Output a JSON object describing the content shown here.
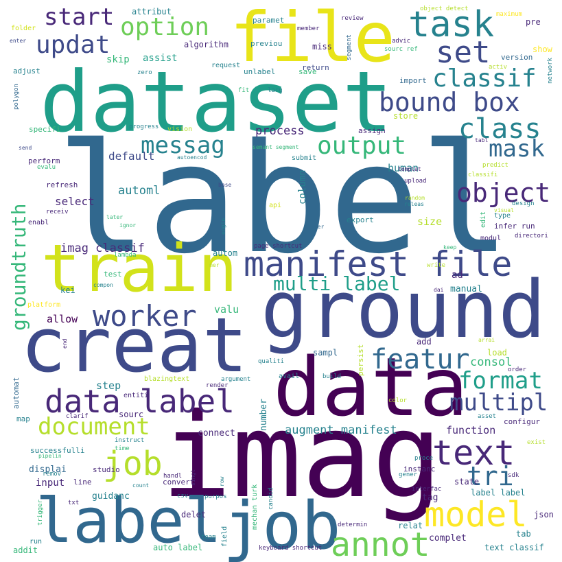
{
  "palette": {
    "background": "#ffffff",
    "dark_purple": "#440154",
    "indigo": "#482878",
    "blue_purple": "#3e4a89",
    "steel_blue": "#31688e",
    "teal_blue": "#26828e",
    "teal": "#1f9e89",
    "green": "#35b779",
    "light_green": "#6ece58",
    "lime": "#b5de2b",
    "yellow": "#fde725"
  },
  "words": [
    {
      "text": "label"
    },
    {
      "text": "imag"
    },
    {
      "text": "dataset"
    },
    {
      "text": "ground"
    },
    {
      "text": "creat"
    },
    {
      "text": "data"
    },
    {
      "text": "train"
    },
    {
      "text": "file"
    },
    {
      "text": "job"
    },
    {
      "text": "label"
    },
    {
      "text": "manifest file"
    },
    {
      "text": "task"
    },
    {
      "text": "set"
    },
    {
      "text": "text"
    },
    {
      "text": "model"
    },
    {
      "text": "annot"
    },
    {
      "text": "data label"
    },
    {
      "text": "job"
    },
    {
      "text": "bound box"
    },
    {
      "text": "class"
    },
    {
      "text": "object"
    },
    {
      "text": "worker"
    },
    {
      "text": "featur"
    },
    {
      "text": "classif"
    },
    {
      "text": "option"
    },
    {
      "text": "output"
    },
    {
      "text": "updat"
    },
    {
      "text": "start"
    },
    {
      "text": "messag"
    },
    {
      "text": "mask"
    },
    {
      "text": "format"
    },
    {
      "text": "multipl"
    },
    {
      "text": "document"
    },
    {
      "text": "tri"
    },
    {
      "text": "multi label"
    },
    {
      "text": "groundtruth"
    },
    {
      "text": "automl"
    },
    {
      "text": "augment manifest"
    },
    {
      "text": "consol"
    },
    {
      "text": "imag classif"
    },
    {
      "text": "process"
    },
    {
      "text": "default"
    },
    {
      "text": "select"
    },
    {
      "text": "human"
    },
    {
      "text": "size"
    },
    {
      "text": "function"
    },
    {
      "text": "allow"
    },
    {
      "text": "valu"
    },
    {
      "text": "step"
    },
    {
      "text": "column"
    },
    {
      "text": "assist"
    },
    {
      "text": "skip"
    },
    {
      "text": "algorithm"
    },
    {
      "text": "attribut"
    },
    {
      "text": "paramet"
    },
    {
      "text": "miss"
    },
    {
      "text": "previou"
    },
    {
      "text": "unlabel"
    },
    {
      "text": "save"
    },
    {
      "text": "return"
    },
    {
      "text": "request"
    },
    {
      "text": "member"
    },
    {
      "text": "review"
    },
    {
      "text": "segment"
    },
    {
      "text": "advic"
    },
    {
      "text": "object detect"
    },
    {
      "text": "maximum"
    },
    {
      "text": "pre"
    },
    {
      "text": "sourc ref"
    },
    {
      "text": "show"
    },
    {
      "text": "version"
    },
    {
      "text": "activ"
    },
    {
      "text": "network"
    },
    {
      "text": "import"
    },
    {
      "text": "store"
    },
    {
      "text": "assign"
    },
    {
      "text": "folder"
    },
    {
      "text": "enter"
    },
    {
      "text": "adjust"
    },
    {
      "text": "zero"
    },
    {
      "text": "polygon"
    },
    {
      "text": "fit"
    },
    {
      "text": "larg"
    },
    {
      "text": "specifi"
    },
    {
      "text": "progress"
    },
    {
      "text": "vision"
    },
    {
      "text": "send"
    },
    {
      "text": "semant segment"
    },
    {
      "text": "tabl"
    },
    {
      "text": "perform"
    },
    {
      "text": "evalu"
    },
    {
      "text": "autoencod"
    },
    {
      "text": "submit"
    },
    {
      "text": "predict"
    },
    {
      "text": "classifi"
    },
    {
      "text": "refresh"
    },
    {
      "text": "base"
    },
    {
      "text": "templat"
    },
    {
      "text": "upload"
    },
    {
      "text": "random"
    },
    {
      "text": "releas"
    },
    {
      "text": "design"
    },
    {
      "text": "visual"
    },
    {
      "text": "type"
    },
    {
      "text": "receiv"
    },
    {
      "text": "enabl"
    },
    {
      "text": "later"
    },
    {
      "text": "ignor"
    },
    {
      "text": "engin"
    },
    {
      "text": "api"
    },
    {
      "text": "iter"
    },
    {
      "text": "export"
    },
    {
      "text": "edit"
    },
    {
      "text": "infer run"
    },
    {
      "text": "directori"
    },
    {
      "text": "modul"
    },
    {
      "text": "keep"
    },
    {
      "text": "lambda"
    },
    {
      "text": "autom"
    },
    {
      "text": "page shortcut"
    },
    {
      "text": "mer"
    },
    {
      "text": "write"
    },
    {
      "text": "ad"
    },
    {
      "text": "test"
    },
    {
      "text": "compon"
    },
    {
      "text": "kei"
    },
    {
      "text": "manual"
    },
    {
      "text": "dai"
    },
    {
      "text": "platform"
    },
    {
      "text": "end"
    },
    {
      "text": "arrai"
    },
    {
      "text": "add"
    },
    {
      "text": "sampl"
    },
    {
      "text": "qualiti"
    },
    {
      "text": "persist"
    },
    {
      "text": "build"
    },
    {
      "text": "load"
    },
    {
      "text": "order"
    },
    {
      "text": "entiti"
    },
    {
      "text": "blazingtext"
    },
    {
      "text": "argument"
    },
    {
      "text": "render"
    },
    {
      "text": "avail"
    },
    {
      "text": "number"
    },
    {
      "text": "color"
    },
    {
      "text": "automat"
    },
    {
      "text": "map"
    },
    {
      "text": "clarif"
    },
    {
      "text": "sourc"
    },
    {
      "text": "connect"
    },
    {
      "text": "asset"
    },
    {
      "text": "configur"
    },
    {
      "text": "instruct"
    },
    {
      "text": "time"
    },
    {
      "text": "successfulli"
    },
    {
      "text": "pipelin"
    },
    {
      "text": "exist"
    },
    {
      "text": "proce"
    },
    {
      "text": "displai"
    },
    {
      "text": "remov"
    },
    {
      "text": "studio"
    },
    {
      "text": "handl"
    },
    {
      "text": "singl"
    },
    {
      "text": "row"
    },
    {
      "text": "instanc"
    },
    {
      "text": "gener"
    },
    {
      "text": "sdk"
    },
    {
      "text": "input"
    },
    {
      "text": "count"
    },
    {
      "text": "line"
    },
    {
      "text": "convert"
    },
    {
      "text": "state"
    },
    {
      "text": "interfac"
    },
    {
      "text": "guidanc"
    },
    {
      "text": "tag"
    },
    {
      "text": "trigger"
    },
    {
      "text": "csv"
    },
    {
      "text": "purpos"
    },
    {
      "text": "mechan turk"
    },
    {
      "text": "candid"
    },
    {
      "text": "label label"
    },
    {
      "text": "txt"
    },
    {
      "text": "delet"
    },
    {
      "text": "relat"
    },
    {
      "text": "json"
    },
    {
      "text": "determin"
    },
    {
      "text": "complet"
    },
    {
      "text": "tab"
    },
    {
      "text": "team"
    },
    {
      "text": "field"
    },
    {
      "text": "run"
    },
    {
      "text": "auto label"
    },
    {
      "text": "keyboard shortcut"
    },
    {
      "text": "text classif"
    },
    {
      "text": "addit"
    }
  ]
}
